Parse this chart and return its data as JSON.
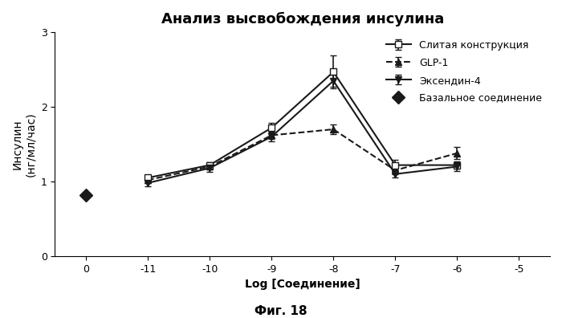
{
  "title": "Анализ высвобождения инсулина",
  "xlabel": "Log [Соединение]",
  "ylabel": "Инсулин\n(нг/мл/час)",
  "figcaption": "Фиг. 18",
  "xlim": [
    0.5,
    -5.5
  ],
  "ylim": [
    0,
    3
  ],
  "xticks": [
    0,
    -11,
    -10,
    -9,
    -8,
    -7,
    -6,
    -5
  ],
  "yticks": [
    0,
    1,
    2,
    3
  ],
  "series": [
    {
      "label": "Слитая конструкция",
      "x": [
        0,
        -11,
        -10,
        -9,
        -8,
        -7,
        -6
      ],
      "y": [
        null,
        1.05,
        1.22,
        1.72,
        2.47,
        1.22,
        1.22
      ],
      "yerr": [
        null,
        0.04,
        0.04,
        0.07,
        0.22,
        0.07,
        0.05
      ],
      "color": "#1a1a1a",
      "linestyle": "-",
      "marker": "s",
      "markerfacecolor": "white",
      "markersize": 6,
      "linewidth": 1.5,
      "zorder": 3
    },
    {
      "label": "GLP-1",
      "x": [
        -11,
        -10,
        -9,
        -8,
        -7,
        -6
      ],
      "y": [
        1.02,
        1.2,
        1.62,
        1.7,
        1.15,
        1.38
      ],
      "yerr": [
        0.04,
        0.04,
        0.05,
        0.06,
        0.05,
        0.08
      ],
      "color": "#1a1a1a",
      "linestyle": "--",
      "marker": "^",
      "markerfacecolor": "#1a1a1a",
      "markersize": 6,
      "linewidth": 1.5,
      "zorder": 2
    },
    {
      "label": "Эксендин-4",
      "x": [
        -11,
        -10,
        -9,
        -8,
        -7,
        -6
      ],
      "y": [
        0.98,
        1.18,
        1.6,
        2.35,
        1.1,
        1.2
      ],
      "yerr": [
        0.04,
        0.05,
        0.06,
        0.08,
        0.05,
        0.06
      ],
      "color": "#1a1a1a",
      "linestyle": "-",
      "marker": "v",
      "markerfacecolor": "#1a1a1a",
      "markersize": 6,
      "linewidth": 1.5,
      "zorder": 3
    },
    {
      "label": "Базальное соединение",
      "x": [
        0
      ],
      "y": [
        0.82
      ],
      "yerr": [
        0
      ],
      "color": "#1a1a1a",
      "linestyle": "none",
      "marker": "D",
      "markerfacecolor": "#1a1a1a",
      "markersize": 8,
      "linewidth": 1.5,
      "zorder": 4
    }
  ],
  "background_color": "#ffffff",
  "spine_color": "#000000",
  "tick_color": "#000000",
  "title_fontsize": 13,
  "label_fontsize": 10,
  "tick_fontsize": 9,
  "legend_fontsize": 9,
  "caption_fontsize": 11
}
